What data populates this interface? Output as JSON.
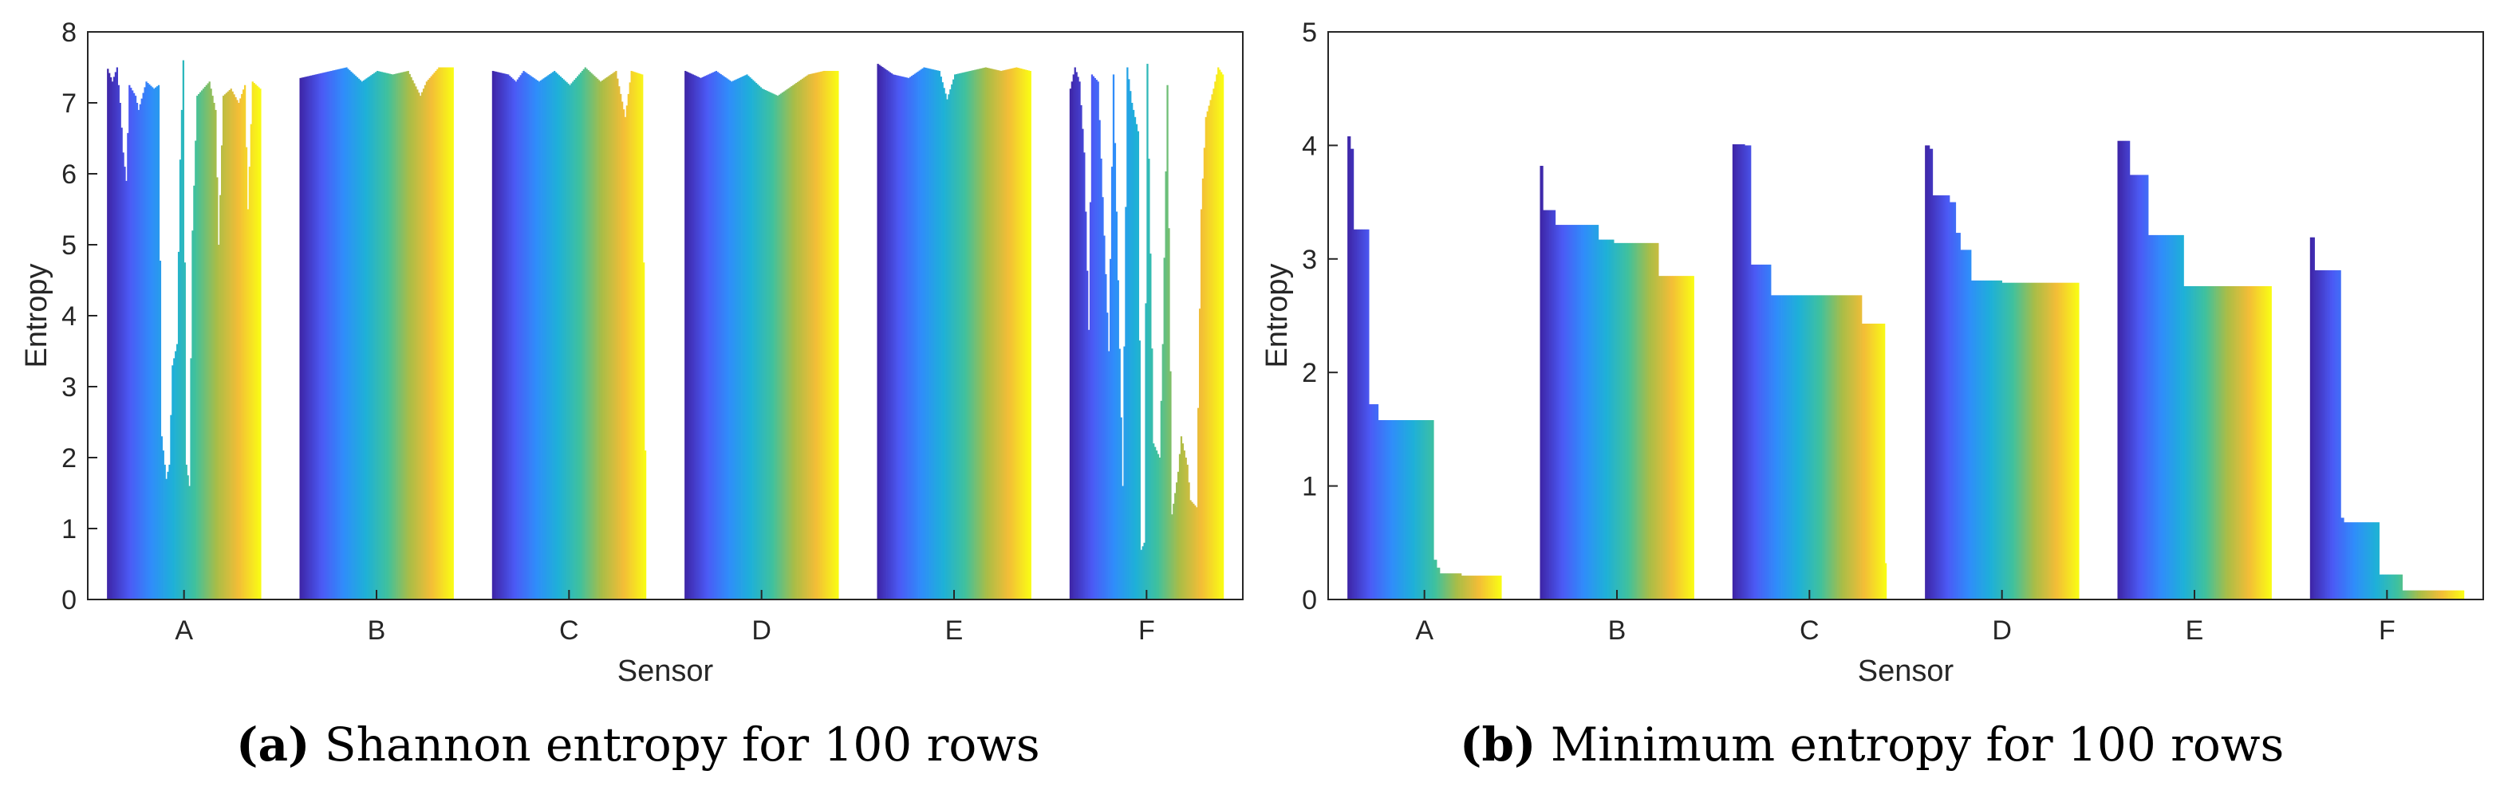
{
  "chart_data": [
    {
      "type": "bar",
      "title": "",
      "xlabel": "Sensor",
      "ylabel": "Entropy",
      "ylim": [
        0,
        8
      ],
      "yticks": [
        0,
        1,
        2,
        3,
        4,
        5,
        6,
        7,
        8
      ],
      "categories": [
        "A",
        "B",
        "C",
        "D",
        "E",
        "F"
      ],
      "series_per_group": 100,
      "colormap": [
        "#3e26a8",
        "#4b5af5",
        "#2f8dfa",
        "#1eb0d8",
        "#3fc19e",
        "#a9bd47",
        "#f3bd37",
        "#f9fb15"
      ],
      "groups": [
        {
          "name": "A",
          "knots": [
            [
              0,
              7.48
            ],
            [
              3,
              7.3
            ],
            [
              6,
              7.5
            ],
            [
              8,
              7.0
            ],
            [
              10,
              6.3
            ],
            [
              12,
              5.9
            ],
            [
              14,
              7.25
            ],
            [
              18,
              7.1
            ],
            [
              20,
              6.9
            ],
            [
              25,
              7.3
            ],
            [
              30,
              7.2
            ],
            [
              33,
              7.25
            ],
            [
              35,
              2.3
            ],
            [
              38,
              1.7
            ],
            [
              40,
              1.9
            ],
            [
              42,
              3.3
            ],
            [
              45,
              3.6
            ],
            [
              47,
              6.2
            ],
            [
              49,
              7.6
            ],
            [
              51,
              1.9
            ],
            [
              53,
              1.6
            ],
            [
              55,
              5.2
            ],
            [
              58,
              7.1
            ],
            [
              62,
              7.2
            ],
            [
              66,
              7.3
            ],
            [
              70,
              6.9
            ],
            [
              72,
              5.0
            ],
            [
              75,
              7.1
            ],
            [
              80,
              7.2
            ],
            [
              85,
              7.0
            ],
            [
              89,
              7.25
            ],
            [
              91,
              5.5
            ],
            [
              94,
              7.3
            ],
            [
              99,
              7.2
            ]
          ]
        },
        {
          "name": "B",
          "knots": [
            [
              0,
              7.35
            ],
            [
              10,
              7.4
            ],
            [
              20,
              7.45
            ],
            [
              30,
              7.5
            ],
            [
              40,
              7.3
            ],
            [
              50,
              7.45
            ],
            [
              60,
              7.4
            ],
            [
              70,
              7.45
            ],
            [
              78,
              7.1
            ],
            [
              82,
              7.3
            ],
            [
              90,
              7.5
            ],
            [
              99,
              7.5
            ]
          ]
        },
        {
          "name": "C",
          "knots": [
            [
              0,
              7.45
            ],
            [
              10,
              7.4
            ],
            [
              15,
              7.3
            ],
            [
              20,
              7.45
            ],
            [
              30,
              7.3
            ],
            [
              40,
              7.45
            ],
            [
              50,
              7.25
            ],
            [
              60,
              7.5
            ],
            [
              70,
              7.3
            ],
            [
              80,
              7.45
            ],
            [
              86,
              6.8
            ],
            [
              90,
              7.45
            ],
            [
              97,
              7.4
            ],
            [
              99,
              2.1
            ]
          ]
        },
        {
          "name": "D",
          "knots": [
            [
              0,
              7.45
            ],
            [
              10,
              7.35
            ],
            [
              20,
              7.45
            ],
            [
              30,
              7.3
            ],
            [
              40,
              7.4
            ],
            [
              50,
              7.2
            ],
            [
              60,
              7.1
            ],
            [
              70,
              7.25
            ],
            [
              80,
              7.4
            ],
            [
              90,
              7.45
            ],
            [
              99,
              7.45
            ]
          ]
        },
        {
          "name": "E",
          "knots": [
            [
              0,
              7.55
            ],
            [
              10,
              7.4
            ],
            [
              20,
              7.35
            ],
            [
              30,
              7.5
            ],
            [
              40,
              7.45
            ],
            [
              45,
              7.05
            ],
            [
              50,
              7.4
            ],
            [
              60,
              7.45
            ],
            [
              70,
              7.5
            ],
            [
              80,
              7.45
            ],
            [
              90,
              7.5
            ],
            [
              99,
              7.45
            ]
          ]
        },
        {
          "name": "F",
          "knots": [
            [
              0,
              7.2
            ],
            [
              3,
              7.5
            ],
            [
              6,
              7.3
            ],
            [
              9,
              6.3
            ],
            [
              12,
              3.8
            ],
            [
              14,
              7.4
            ],
            [
              18,
              7.3
            ],
            [
              25,
              3.5
            ],
            [
              28,
              7.4
            ],
            [
              34,
              1.6
            ],
            [
              37,
              7.5
            ],
            [
              40,
              7.0
            ],
            [
              44,
              6.6
            ],
            [
              46,
              0.7
            ],
            [
              48,
              0.8
            ],
            [
              50,
              7.55
            ],
            [
              54,
              2.2
            ],
            [
              58,
              2.0
            ],
            [
              60,
              3.6
            ],
            [
              63,
              7.25
            ],
            [
              66,
              1.2
            ],
            [
              70,
              1.8
            ],
            [
              72,
              2.3
            ],
            [
              76,
              1.9
            ],
            [
              78,
              1.4
            ],
            [
              82,
              1.3
            ],
            [
              85,
              5.5
            ],
            [
              88,
              6.8
            ],
            [
              93,
              7.2
            ],
            [
              96,
              7.5
            ],
            [
              99,
              7.4
            ]
          ]
        }
      ]
    },
    {
      "type": "bar",
      "title": "",
      "xlabel": "Sensor",
      "ylabel": "Entropy",
      "ylim": [
        0,
        5
      ],
      "yticks": [
        0,
        1,
        2,
        3,
        4,
        5
      ],
      "categories": [
        "A",
        "B",
        "C",
        "D",
        "E",
        "F"
      ],
      "series_per_group": 100,
      "colormap": [
        "#3e26a8",
        "#4b5af5",
        "#2f8dfa",
        "#1eb0d8",
        "#3fc19e",
        "#a9bd47",
        "#f3bd37",
        "#f9fb15"
      ],
      "groups": [
        {
          "name": "A",
          "steps": [
            [
              0,
              4.08
            ],
            [
              2,
              3.97
            ],
            [
              4,
              3.26
            ],
            [
              14,
              1.72
            ],
            [
              20,
              1.58
            ],
            [
              56,
              0.35
            ],
            [
              58,
              0.28
            ],
            [
              60,
              0.23
            ],
            [
              74,
              0.21
            ],
            [
              100,
              0
            ]
          ]
        },
        {
          "name": "B",
          "steps": [
            [
              0,
              3.82
            ],
            [
              2,
              3.43
            ],
            [
              10,
              3.3
            ],
            [
              38,
              3.17
            ],
            [
              48,
              3.14
            ],
            [
              77,
              2.85
            ],
            [
              100,
              0
            ]
          ]
        },
        {
          "name": "C",
          "steps": [
            [
              0,
              4.01
            ],
            [
              8,
              4.0
            ],
            [
              12,
              2.95
            ],
            [
              25,
              2.68
            ],
            [
              84,
              2.43
            ],
            [
              99,
              0.32
            ],
            [
              100,
              0
            ]
          ]
        },
        {
          "name": "D",
          "steps": [
            [
              0,
              4.0
            ],
            [
              3,
              3.97
            ],
            [
              5,
              3.56
            ],
            [
              16,
              3.5
            ],
            [
              20,
              3.23
            ],
            [
              23,
              3.08
            ],
            [
              30,
              2.81
            ],
            [
              50,
              2.79
            ],
            [
              100,
              0
            ]
          ]
        },
        {
          "name": "E",
          "steps": [
            [
              0,
              4.04
            ],
            [
              8,
              3.74
            ],
            [
              20,
              3.21
            ],
            [
              43,
              2.76
            ],
            [
              100,
              0
            ]
          ]
        },
        {
          "name": "F",
          "steps": [
            [
              0,
              3.19
            ],
            [
              3,
              2.9
            ],
            [
              20,
              0.72
            ],
            [
              22,
              0.68
            ],
            [
              45,
              0.22
            ],
            [
              60,
              0.08
            ],
            [
              100,
              0
            ]
          ]
        }
      ]
    }
  ],
  "captions": [
    {
      "tag": "(a)",
      "text": "Shannon entropy for 100 rows"
    },
    {
      "tag": "(b)",
      "text": "Minimum entropy for 100 rows"
    }
  ]
}
